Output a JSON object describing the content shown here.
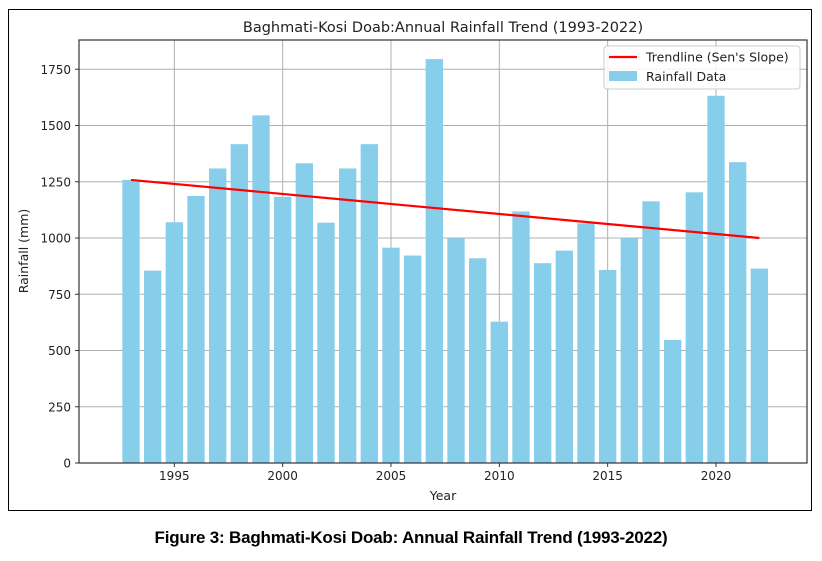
{
  "chart_data": {
    "type": "bar",
    "title": "Baghmati-Kosi Doab:Annual Rainfall Trend (1993-2022)",
    "xlabel": "Year",
    "ylabel": "Rainfall (mm)",
    "x": [
      1993,
      1994,
      1995,
      1996,
      1997,
      1998,
      1999,
      2000,
      2001,
      2002,
      2003,
      2004,
      2005,
      2006,
      2007,
      2008,
      2009,
      2010,
      2011,
      2012,
      2013,
      2014,
      2015,
      2016,
      2017,
      2018,
      2019,
      2020,
      2021,
      2022
    ],
    "series": [
      {
        "name": "Rainfall Data",
        "type": "bar",
        "color": "#87CEEB",
        "values": [
          1258,
          855,
          1070,
          1187,
          1309,
          1417,
          1545,
          1183,
          1332,
          1068,
          1309,
          1417,
          957,
          922,
          1795,
          999,
          910,
          628,
          1118,
          888,
          944,
          1065,
          858,
          999,
          1163,
          547,
          1203,
          1632,
          1337,
          864
        ]
      },
      {
        "name": "Trendline (Sen's Slope)",
        "type": "line",
        "color": "#FF0000",
        "start": {
          "x": 1993,
          "y": 1258
        },
        "end": {
          "x": 2022,
          "y": 1000
        }
      }
    ],
    "xlim": [
      1990.6,
      2024.2
    ],
    "ylim": [
      0,
      1880
    ],
    "xticks": [
      1995,
      2000,
      2005,
      2010,
      2015,
      2020
    ],
    "yticks": [
      0,
      250,
      500,
      750,
      1000,
      1250,
      1500,
      1750
    ],
    "grid": true,
    "legend": {
      "position": "top-right",
      "entries": [
        "Trendline (Sen's Slope)",
        "Rainfall Data"
      ]
    }
  },
  "caption": "Figure 3: Baghmati-Kosi Doab: Annual Rainfall Trend (1993-2022)"
}
